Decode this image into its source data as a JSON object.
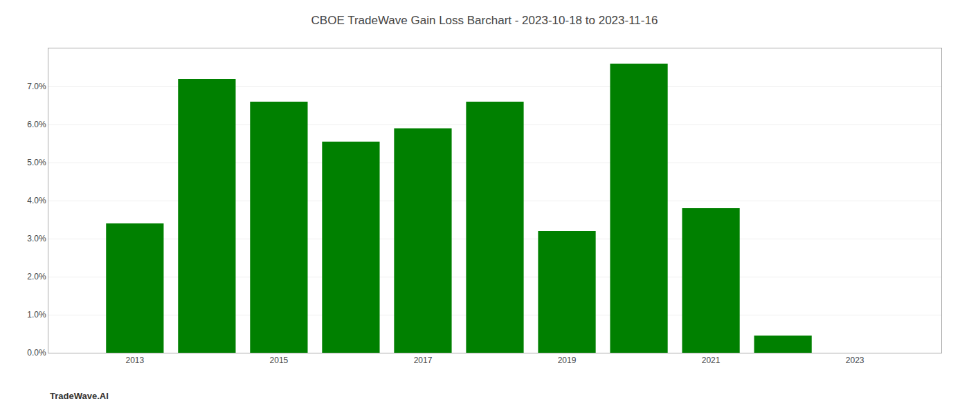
{
  "chart_data": {
    "type": "bar",
    "title": "CBOE TradeWave Gain Loss Barchart - 2023-10-18 to 2023-11-16",
    "annotations": [
      "TradeWave.AI"
    ],
    "x": [
      2013,
      2014,
      2015,
      2016,
      2017,
      2018,
      2019,
      2020,
      2021,
      2022,
      2023
    ],
    "values": [
      0.034,
      0.072,
      0.066,
      0.0555,
      0.059,
      0.066,
      0.032,
      0.076,
      0.038,
      0.0045,
      0.0
    ],
    "color": "#008000",
    "xlim": [
      2011.8,
      2024.2
    ],
    "xticks": [
      2013,
      2015,
      2017,
      2019,
      2021,
      2023
    ],
    "ylim": [
      0,
      0.08
    ],
    "yticks": [
      {
        "value": 0.0,
        "label": "0.0%"
      },
      {
        "value": 0.01,
        "label": "1.0%"
      },
      {
        "value": 0.02,
        "label": "2.0%"
      },
      {
        "value": 0.03,
        "label": "3.0%"
      },
      {
        "value": 0.04,
        "label": "4.0%"
      },
      {
        "value": 0.05,
        "label": "5.0%"
      },
      {
        "value": 0.06,
        "label": "6.0%"
      },
      {
        "value": 0.07,
        "label": "7.0%"
      }
    ],
    "grid": true
  }
}
